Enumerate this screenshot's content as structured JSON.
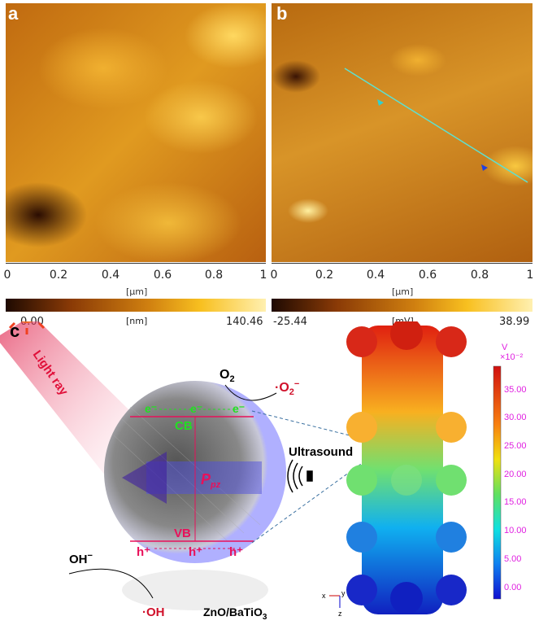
{
  "panel_a": {
    "label": "a",
    "axis_ticks": [
      "0",
      "0.2",
      "0.4",
      "0.6",
      "0.8",
      "1"
    ],
    "axis_unit": "[µm]",
    "colorbar": {
      "min": "0.00",
      "unit": "[nm]",
      "max": "140.46"
    }
  },
  "panel_b": {
    "label": "b",
    "axis_ticks": [
      "0",
      "0.2",
      "0.4",
      "0.6",
      "0.8",
      "1"
    ],
    "axis_unit": "[µm]",
    "colorbar": {
      "min": "-25.44",
      "unit": "[mV]",
      "max": "38.99"
    }
  },
  "panel_c": {
    "label": "c",
    "light": "Light ray",
    "o2": "O",
    "o2_sub": "2",
    "o2_rad": "O",
    "o2_rad_sub": "2",
    "o2_rad_sup": "−",
    "electrons": [
      "e⁻",
      "e⁻",
      "e⁻"
    ],
    "cb": "CB",
    "vb": "VB",
    "ppz": "P",
    "ppz_sub": "pz",
    "holes": [
      "h⁺",
      "h⁺",
      "h⁺"
    ],
    "oh": "OH",
    "oh_sup": "−",
    "oh_rad": "OH",
    "material": "ZnO/BaTiO",
    "material_sub": "3",
    "ultrasound": "Ultrasound",
    "colorbar": {
      "unit": "V",
      "scale": "×10⁻²",
      "ticks": [
        "35.00",
        "30.00",
        "25.00",
        "20.00",
        "15.00",
        "10.00",
        "5.00",
        "0.00"
      ]
    },
    "axes": {
      "x": "x",
      "y": "y",
      "z": "z"
    }
  },
  "colors": {
    "afm_dark": "#1e0a02",
    "afm_mid": "#c87010",
    "afm_light": "#ffe89a",
    "annotation": "#e8105a",
    "electron": "#22e022",
    "colorbar_text": "#e020e0"
  }
}
